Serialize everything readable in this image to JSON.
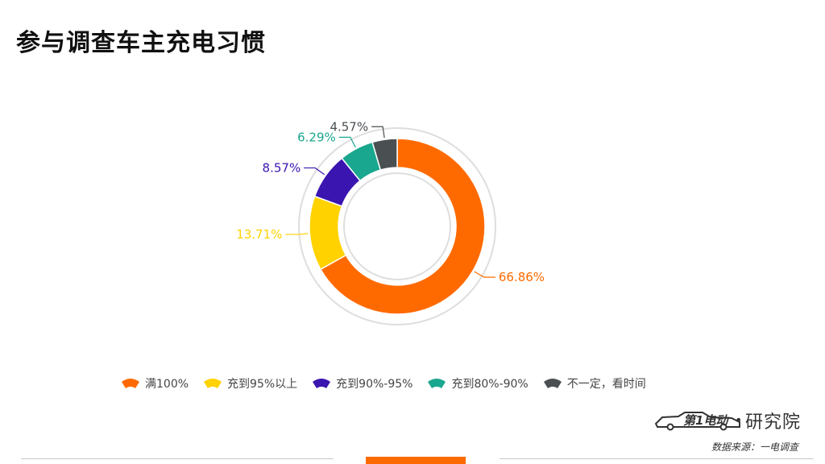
{
  "page": {
    "title": "参与调查车主充电习惯"
  },
  "chart_data": {
    "type": "pie",
    "title": "",
    "series": [
      {
        "name": "满100%",
        "value": 66.86,
        "label": "66.86%",
        "color": "#ff6a00"
      },
      {
        "name": "充到95%以上",
        "value": 13.71,
        "label": "13.71%",
        "color": "#ffd200"
      },
      {
        "name": "充到90%-95%",
        "value": 8.57,
        "label": "8.57%",
        "color": "#3b15b0"
      },
      {
        "name": "充到80%-90%",
        "value": 6.29,
        "label": "6.29%",
        "color": "#1aa78f"
      },
      {
        "name": "不一定，看时间",
        "value": 4.57,
        "label": "4.57%",
        "color": "#4a4f52"
      }
    ],
    "legend_position": "bottom"
  },
  "logo": {
    "brand_mark": "第1电动",
    "separator": "•",
    "name": "研究院"
  },
  "footer": {
    "source": "数据来源：一电调查"
  },
  "colors": {
    "accent": "#ff6a00",
    "divider": "#c8c8c8"
  }
}
